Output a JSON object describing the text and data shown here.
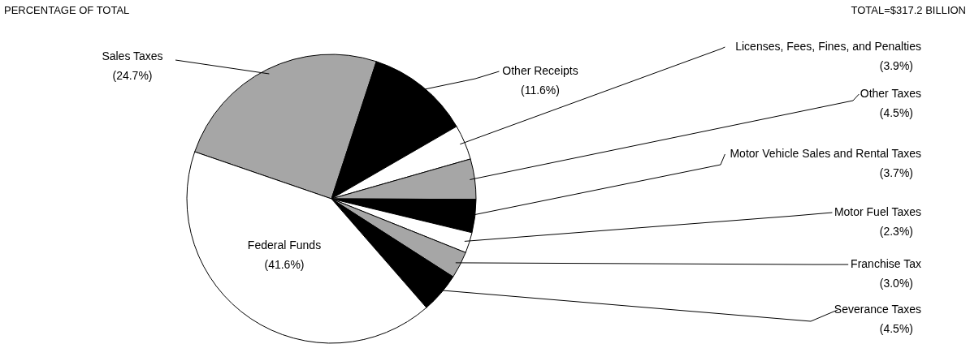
{
  "chart_data": {
    "type": "pie",
    "title": "PERCENTAGE OF TOTAL",
    "annotations": [
      "TOTAL=$317.2 BILLION"
    ],
    "categories": [
      "Sales Taxes",
      "Other Receipts",
      "Licenses, Fees, Fines, and Penalties",
      "Other Taxes",
      "Motor Vehicle Sales and Rental Taxes",
      "Motor Fuel Taxes",
      "Franchise Tax",
      "Severance Taxes",
      "Federal Funds"
    ],
    "values": [
      24.7,
      11.6,
      3.9,
      4.5,
      3.7,
      2.3,
      3.0,
      4.5,
      41.6
    ],
    "value_labels": [
      "(24.7%)",
      "(11.6%)",
      "(3.9%)",
      "(4.5%)",
      "(3.7%)",
      "(2.3%)",
      "(3.0%)",
      "(4.5%)",
      "(41.6%)"
    ],
    "colors": [
      "#a6a6a6",
      "#000000",
      "#ffffff",
      "#a6a6a6",
      "#000000",
      "#ffffff",
      "#a6a6a6",
      "#000000",
      "#ffffff"
    ]
  }
}
